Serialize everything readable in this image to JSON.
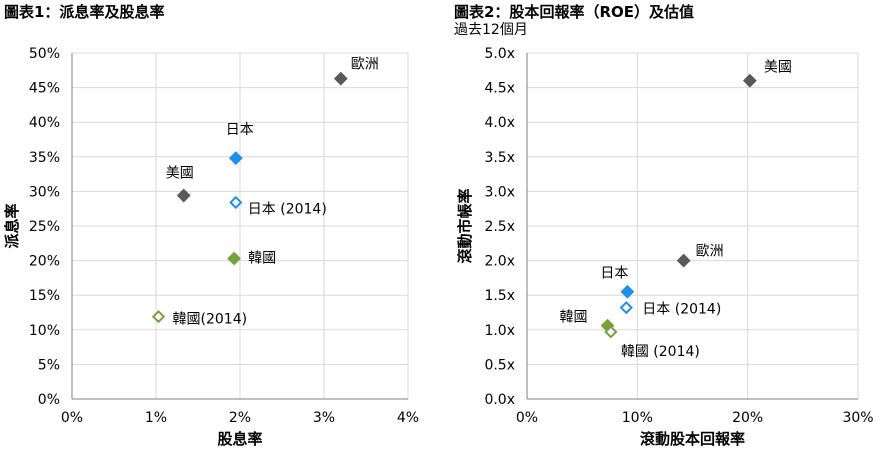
{
  "chart_data": [
    {
      "type": "scatter",
      "title": "圖表1：派息率及股息率",
      "xlabel": "股息率",
      "ylabel": "派息率",
      "xlim": [
        0,
        4
      ],
      "ylim": [
        0,
        50
      ],
      "x_ticks": [
        "0%",
        "1%",
        "2%",
        "3%",
        "4%"
      ],
      "y_ticks": [
        "0%",
        "5%",
        "10%",
        "15%",
        "20%",
        "25%",
        "30%",
        "35%",
        "40%",
        "45%",
        "50%"
      ],
      "grid": true,
      "points": [
        {
          "label": "歐洲",
          "x": 3.2,
          "y": 46.3,
          "color": "#595959",
          "filled": true
        },
        {
          "label": "日本",
          "x": 1.95,
          "y": 34.8,
          "color": "#1f8fe8",
          "filled": true
        },
        {
          "label": "美國",
          "x": 1.33,
          "y": 29.4,
          "color": "#595959",
          "filled": true
        },
        {
          "label": "日本 (2014)",
          "x": 1.95,
          "y": 28.4,
          "color": "#1f8fe8",
          "filled": false
        },
        {
          "label": "韓國",
          "x": 1.93,
          "y": 20.3,
          "color": "#77a03f",
          "filled": true
        },
        {
          "label": "韓國(2014)",
          "x": 1.03,
          "y": 11.9,
          "color": "#77a03f",
          "filled": false
        }
      ]
    },
    {
      "type": "scatter",
      "title": "圖表2：股本回報率（ROE）及估值",
      "subtitle": "過去12個月",
      "xlabel": "滾動股本回報率",
      "ylabel": "滾動市帳率",
      "xlim": [
        0,
        30
      ],
      "ylim": [
        0,
        5
      ],
      "x_ticks": [
        "0%",
        "10%",
        "20%",
        "30%"
      ],
      "y_ticks": [
        "0.0x",
        "0.5x",
        "1.0x",
        "1.5x",
        "2.0x",
        "2.5x",
        "3.0x",
        "3.5x",
        "4.0x",
        "4.5x",
        "5.0x"
      ],
      "grid": true,
      "points": [
        {
          "label": "美國",
          "x": 20.2,
          "y": 4.6,
          "color": "#595959",
          "filled": true
        },
        {
          "label": "歐洲",
          "x": 14.2,
          "y": 2.0,
          "color": "#595959",
          "filled": true
        },
        {
          "label": "日本",
          "x": 9.1,
          "y": 1.55,
          "color": "#1f8fe8",
          "filled": true
        },
        {
          "label": "日本 (2014)",
          "x": 9.0,
          "y": 1.32,
          "color": "#1f8fe8",
          "filled": false
        },
        {
          "label": "韓國",
          "x": 7.3,
          "y": 1.06,
          "color": "#77a03f",
          "filled": true
        },
        {
          "label": "韓國 (2014)",
          "x": 7.6,
          "y": 0.97,
          "color": "#77a03f",
          "filled": false
        }
      ]
    }
  ]
}
